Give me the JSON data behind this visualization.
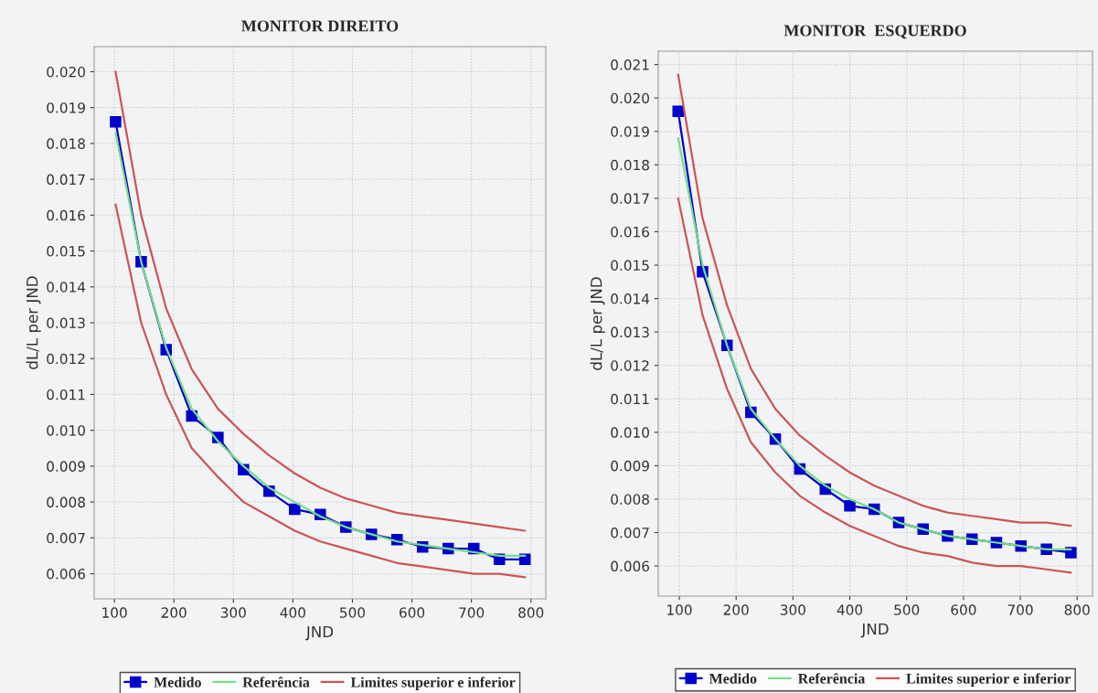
{
  "chart_data": [
    {
      "type": "line",
      "title": "MONITOR DIREITO",
      "xlabel": "JND",
      "ylabel": "dL/L per JND",
      "grid": true,
      "legend": "bottom",
      "xlim": [
        66,
        825
      ],
      "xticks": [
        100,
        200,
        300,
        400,
        500,
        600,
        700,
        800
      ],
      "ylim": [
        0.0053,
        0.0207
      ],
      "yticks": [
        {
          "value": 0.006,
          "label": "0.006"
        },
        {
          "value": 0.007,
          "label": "0.007"
        },
        {
          "value": 0.008,
          "label": "0.008"
        },
        {
          "value": 0.009,
          "label": "0.009"
        },
        {
          "value": 0.01,
          "label": "0.010"
        },
        {
          "value": 0.011,
          "label": "0.011"
        },
        {
          "value": 0.012,
          "label": "0.012"
        },
        {
          "value": 0.013,
          "label": "0.013"
        },
        {
          "value": 0.014,
          "label": "0.014"
        },
        {
          "value": 0.015,
          "label": "0.015"
        },
        {
          "value": 0.016,
          "label": "0.016"
        },
        {
          "value": 0.017,
          "label": "0.017"
        },
        {
          "value": 0.018,
          "label": "0.018"
        },
        {
          "value": 0.019,
          "label": "0.019"
        },
        {
          "value": 0.02,
          "label": "0.020"
        }
      ],
      "x": [
        102,
        145,
        187,
        230,
        274,
        317,
        360,
        403,
        446,
        489,
        532,
        575,
        618,
        661,
        704,
        747,
        790
      ],
      "series": [
        {
          "name": "Medido",
          "color": "#0000cc",
          "marker": "square",
          "values": [
            0.0186,
            0.0147,
            0.01225,
            0.0104,
            0.0098,
            0.0089,
            0.0083,
            0.0078,
            0.00765,
            0.0073,
            0.0071,
            0.00695,
            0.00675,
            0.0067,
            0.0067,
            0.0064,
            0.0064
          ]
        },
        {
          "name": "Referência",
          "color": "#77dd88",
          "values": [
            0.0183,
            0.0147,
            0.0123,
            0.0106,
            0.0097,
            0.009,
            0.0084,
            0.008,
            0.0076,
            0.0073,
            0.0071,
            0.0069,
            0.0068,
            0.0067,
            0.0066,
            0.0065,
            0.0065
          ]
        },
        {
          "name": "Limites superior e inferior",
          "color": "#cc5555",
          "values": [
            0.02,
            0.016,
            0.0134,
            0.0117,
            0.0106,
            0.0099,
            0.0093,
            0.0088,
            0.0084,
            0.0081,
            0.0079,
            0.0077,
            0.0076,
            0.0075,
            0.0074,
            0.0073,
            0.0072
          ]
        },
        {
          "color": "#cc5555",
          "values": [
            0.0163,
            0.013,
            0.011,
            0.0095,
            0.0087,
            0.008,
            0.0076,
            0.0072,
            0.0069,
            0.0067,
            0.0065,
            0.0063,
            0.0062,
            0.0061,
            0.006,
            0.006,
            0.0059
          ]
        }
      ]
    },
    {
      "type": "line",
      "title": "MONITOR  ESQUERDO",
      "xlabel": "JND",
      "ylabel": "dL/L per JND",
      "grid": true,
      "legend": "bottom",
      "xlim": [
        63,
        827
      ],
      "xticks": [
        100,
        200,
        300,
        400,
        500,
        600,
        700,
        800
      ],
      "ylim": [
        0.0051,
        0.0214
      ],
      "yticks": [
        {
          "value": 0.006,
          "label": "0.006"
        },
        {
          "value": 0.007,
          "label": "0.007"
        },
        {
          "value": 0.008,
          "label": "0.008"
        },
        {
          "value": 0.009,
          "label": "0.009"
        },
        {
          "value": 0.01,
          "label": "0.010"
        },
        {
          "value": 0.011,
          "label": "0.011"
        },
        {
          "value": 0.012,
          "label": "0.012"
        },
        {
          "value": 0.013,
          "label": "0.013"
        },
        {
          "value": 0.014,
          "label": "0.014"
        },
        {
          "value": 0.015,
          "label": "0.015"
        },
        {
          "value": 0.016,
          "label": "0.016"
        },
        {
          "value": 0.017,
          "label": "0.017"
        },
        {
          "value": 0.018,
          "label": "0.018"
        },
        {
          "value": 0.019,
          "label": "0.019"
        },
        {
          "value": 0.02,
          "label": "0.020"
        },
        {
          "value": 0.021,
          "label": "0.021"
        }
      ],
      "x": [
        98,
        141,
        184,
        226,
        269,
        312,
        357,
        400,
        443,
        486,
        529,
        572,
        615,
        658,
        701,
        746,
        789
      ],
      "series": [
        {
          "name": "Medido",
          "color": "#0000cc",
          "marker": "square",
          "values": [
            0.0196,
            0.0148,
            0.0126,
            0.0106,
            0.0098,
            0.0089,
            0.0083,
            0.0078,
            0.0077,
            0.0073,
            0.0071,
            0.0069,
            0.0068,
            0.0067,
            0.0066,
            0.0065,
            0.0064
          ]
        },
        {
          "name": "Referência",
          "color": "#77dd88",
          "values": [
            0.0188,
            0.015,
            0.0126,
            0.0107,
            0.0098,
            0.009,
            0.0084,
            0.008,
            0.0077,
            0.0073,
            0.0071,
            0.0069,
            0.0068,
            0.0067,
            0.0066,
            0.0065,
            0.0065
          ]
        },
        {
          "name": "Limites superior e inferior",
          "color": "#cc5555",
          "values": [
            0.0207,
            0.0164,
            0.0138,
            0.0119,
            0.0107,
            0.0099,
            0.0093,
            0.0088,
            0.0084,
            0.0081,
            0.0078,
            0.0076,
            0.0075,
            0.0074,
            0.0073,
            0.0073,
            0.0072
          ]
        },
        {
          "color": "#cc5555",
          "values": [
            0.017,
            0.0135,
            0.0113,
            0.0097,
            0.0088,
            0.0081,
            0.0076,
            0.0072,
            0.0069,
            0.0066,
            0.0064,
            0.0063,
            0.0061,
            0.006,
            0.006,
            0.0059,
            0.0058
          ]
        }
      ]
    }
  ]
}
